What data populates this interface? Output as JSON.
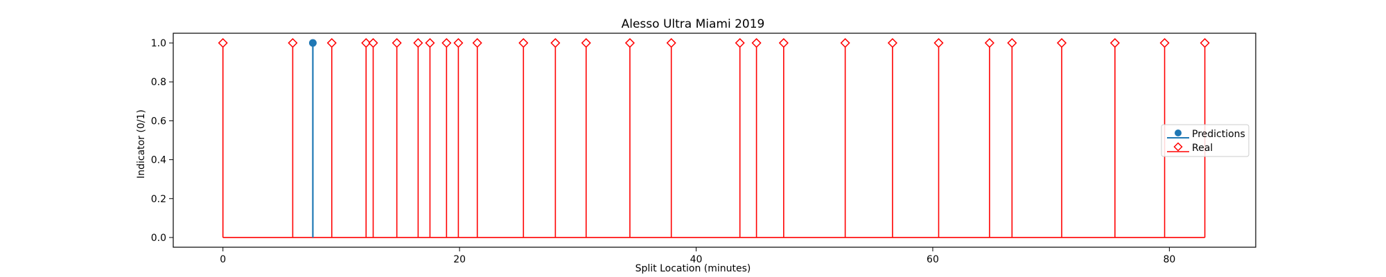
{
  "chart_data": {
    "type": "stem",
    "title": "Alesso Ultra Miami 2019",
    "xlabel": "Split Location (minutes)",
    "ylabel": "Indicator (0/1)",
    "xlim": [
      -4.2,
      87.3
    ],
    "ylim": [
      -0.05,
      1.05
    ],
    "x_ticks": [
      0,
      20,
      40,
      60,
      80
    ],
    "y_ticks": [
      0.0,
      0.2,
      0.4,
      0.6,
      0.8,
      1.0
    ],
    "x_tick_labels": [
      "0",
      "20",
      "40",
      "60",
      "80"
    ],
    "y_tick_labels": [
      "0.0",
      "0.2",
      "0.4",
      "0.6",
      "0.8",
      "1.0"
    ],
    "grid": false,
    "legend_position": "center-right",
    "series": [
      {
        "name": "Predictions",
        "color": "#1f77b4",
        "marker": "circle",
        "x": [
          7.6
        ],
        "y": [
          1
        ]
      },
      {
        "name": "Real",
        "color": "#ff0000",
        "marker": "diamond-open",
        "x": [
          0,
          5.9,
          9.2,
          12.1,
          12.7,
          14.7,
          16.5,
          17.5,
          18.9,
          19.9,
          21.5,
          25.4,
          28.1,
          30.7,
          34.4,
          37.9,
          43.7,
          45.1,
          47.4,
          52.6,
          56.6,
          60.5,
          64.8,
          66.7,
          70.9,
          75.4,
          79.6,
          83.0
        ],
        "y": [
          1,
          1,
          1,
          1,
          1,
          1,
          1,
          1,
          1,
          1,
          1,
          1,
          1,
          1,
          1,
          1,
          1,
          1,
          1,
          1,
          1,
          1,
          1,
          1,
          1,
          1,
          1,
          1
        ]
      }
    ]
  }
}
